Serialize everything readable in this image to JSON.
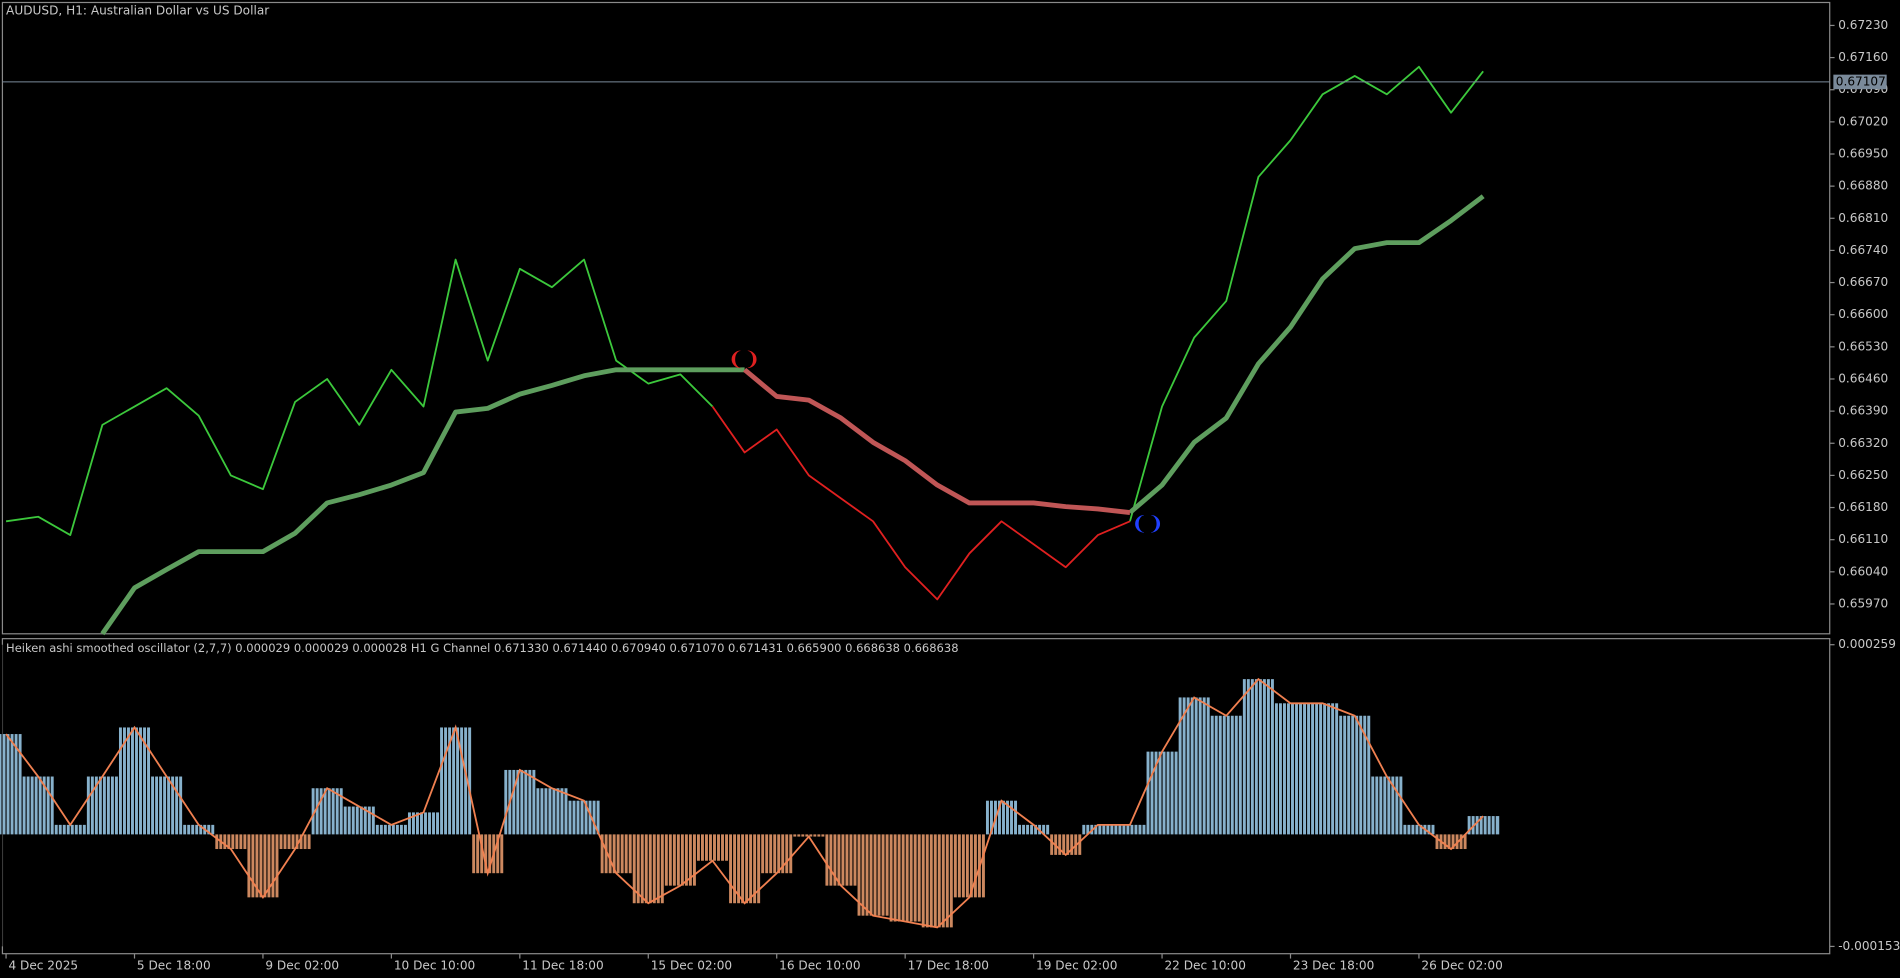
{
  "chart_data": [
    {
      "type": "line",
      "title": "AUDUSD, H1:  Australian Dollar vs US Dollar",
      "categories": [
        "4 Dec 2025",
        null,
        null,
        null,
        "5 Dec 18:00",
        null,
        null,
        null,
        "9 Dec 02:00",
        null,
        null,
        null,
        "10 Dec 10:00",
        null,
        null,
        null,
        "11 Dec 18:00",
        null,
        null,
        null,
        "15 Dec 02:00",
        null,
        null,
        null,
        "16 Dec 10:00",
        null,
        null,
        null,
        "17 Dec 18:00",
        null,
        null,
        null,
        "19 Dec 02:00",
        null,
        null,
        null,
        "22 Dec 10:00",
        null,
        null,
        null,
        "23 Dec 18:00",
        null,
        null,
        null,
        "26 Dec 02:00",
        null,
        null
      ],
      "series": [
        {
          "color": "#3cc83c",
          "values": [
            0.6615,
            0.6616,
            0.6612,
            0.6636,
            0.664,
            0.6644,
            0.6638,
            0.6625,
            0.6622,
            0.6641,
            0.6646,
            0.6636,
            0.6648,
            0.664,
            0.6672,
            0.665,
            0.667,
            0.6666,
            0.6672,
            0.665,
            0.6645,
            0.6647,
            0.664,
            null,
            null,
            null,
            null,
            null,
            null,
            null,
            null,
            null,
            null,
            null,
            null,
            0.6615,
            0.664,
            0.6655,
            0.6663,
            0.669,
            0.6698,
            0.6708,
            0.6712,
            0.6708,
            0.6714,
            0.6704,
            0.6713
          ]
        },
        {
          "color": "#e02020",
          "values": [
            null,
            null,
            null,
            null,
            null,
            null,
            null,
            null,
            null,
            null,
            null,
            null,
            null,
            null,
            null,
            null,
            null,
            null,
            null,
            null,
            null,
            null,
            0.664,
            0.663,
            0.6635,
            0.6625,
            0.662,
            0.6615,
            0.6605,
            0.6598,
            0.6608,
            0.6615,
            0.661,
            0.6605,
            0.6612,
            0.6615,
            null,
            null,
            null,
            null,
            null,
            null,
            null,
            null,
            null,
            null,
            null
          ]
        },
        {
          "color": "#5e9e5e",
          "width": 4,
          "values": [
            null,
            null,
            null,
            0.65905,
            0.66005,
            0.66045,
            0.66084,
            0.66084,
            0.66084,
            0.66124,
            0.6619,
            0.66208,
            0.66229,
            0.66256,
            0.66388,
            0.66396,
            0.66427,
            0.66446,
            0.66467,
            0.6648,
            0.6648,
            0.6648,
            0.6648,
            0.6648,
            null,
            null,
            null,
            null,
            null,
            null,
            null,
            null,
            null,
            null,
            null,
            0.66169,
            0.66229,
            0.66322,
            0.66375,
            0.66493,
            0.66573,
            0.66678,
            0.66744,
            0.66757,
            0.66757,
            0.66805,
            0.66858
          ]
        },
        {
          "color": "#c05656",
          "width": 4,
          "values": [
            null,
            null,
            null,
            null,
            null,
            null,
            null,
            null,
            null,
            null,
            null,
            null,
            null,
            null,
            null,
            null,
            null,
            null,
            null,
            null,
            null,
            null,
            null,
            0.6648,
            0.66422,
            0.66414,
            0.66375,
            0.66322,
            0.66282,
            0.66229,
            0.6619,
            0.6619,
            0.6619,
            0.66182,
            0.66177,
            0.66169,
            null,
            null,
            null,
            null,
            null,
            null,
            null,
            null,
            null,
            null,
            null
          ]
        }
      ],
      "current_price": 0.67107,
      "ylim": [
        0.65905,
        0.6728
      ],
      "yticks": [
        {
          "value": 0.6723,
          "label": "0.67230"
        },
        {
          "value": 0.6716,
          "label": "0.67160"
        },
        {
          "value": 0.6709,
          "label": "0.67090"
        },
        {
          "value": 0.6702,
          "label": "0.67020"
        },
        {
          "value": 0.6695,
          "label": "0.66950"
        },
        {
          "value": 0.6688,
          "label": "0.66880"
        },
        {
          "value": 0.6681,
          "label": "0.66810"
        },
        {
          "value": 0.6674,
          "label": "0.66740"
        },
        {
          "value": 0.6667,
          "label": "0.66670"
        },
        {
          "value": 0.666,
          "label": "0.66600"
        },
        {
          "value": 0.6653,
          "label": "0.66530"
        },
        {
          "value": 0.6646,
          "label": "0.66460"
        },
        {
          "value": 0.6639,
          "label": "0.66390"
        },
        {
          "value": 0.6632,
          "label": "0.66320"
        },
        {
          "value": 0.6625,
          "label": "0.66250"
        },
        {
          "value": 0.6618,
          "label": "0.66180"
        },
        {
          "value": 0.6611,
          "label": "0.66110"
        },
        {
          "value": 0.6604,
          "label": "0.66040"
        },
        {
          "value": 0.6597,
          "label": "0.65970"
        }
      ]
    },
    {
      "type": "bar",
      "title": "Heiken ashi smoothed oscillator (2,7,7) 0.000029 0.000029 0.000028 H1 G Channel 0.671330 0.671440 0.670940 0.671070 0.671431 0.665900 0.668638 0.668638",
      "color": "#9fd0f0",
      "negative_color": "#f0a070",
      "values": [
        0.000137,
        7.9e-05,
        1.3e-05,
        7.9e-05,
        0.000146,
        7.9e-05,
        1.3e-05,
        -2e-05,
        -8.6e-05,
        -2e-05,
        6.3e-05,
        3.8e-05,
        1.3e-05,
        3e-05,
        0.000146,
        -5.3e-05,
        8.8e-05,
        6.3e-05,
        4.6e-05,
        -5.3e-05,
        -9.4e-05,
        -7e-05,
        -3.6e-05,
        -9.4e-05,
        -5.3e-05,
        -3e-06,
        -7e-05,
        -0.000111,
        -0.000119,
        -0.000127,
        -8.6e-05,
        4.6e-05,
        1.3e-05,
        -2.8e-05,
        1.3e-05,
        1.3e-05,
        0.000113,
        0.000187,
        0.000162,
        0.000212,
        0.000179,
        0.000179,
        0.000162,
        7.9e-05,
        1.3e-05,
        -2e-05,
        2.5e-05
      ],
      "ylim": [
        -0.000153,
        0.000259
      ],
      "yticks": [
        0.000259,
        -0.000153
      ]
    }
  ]
}
